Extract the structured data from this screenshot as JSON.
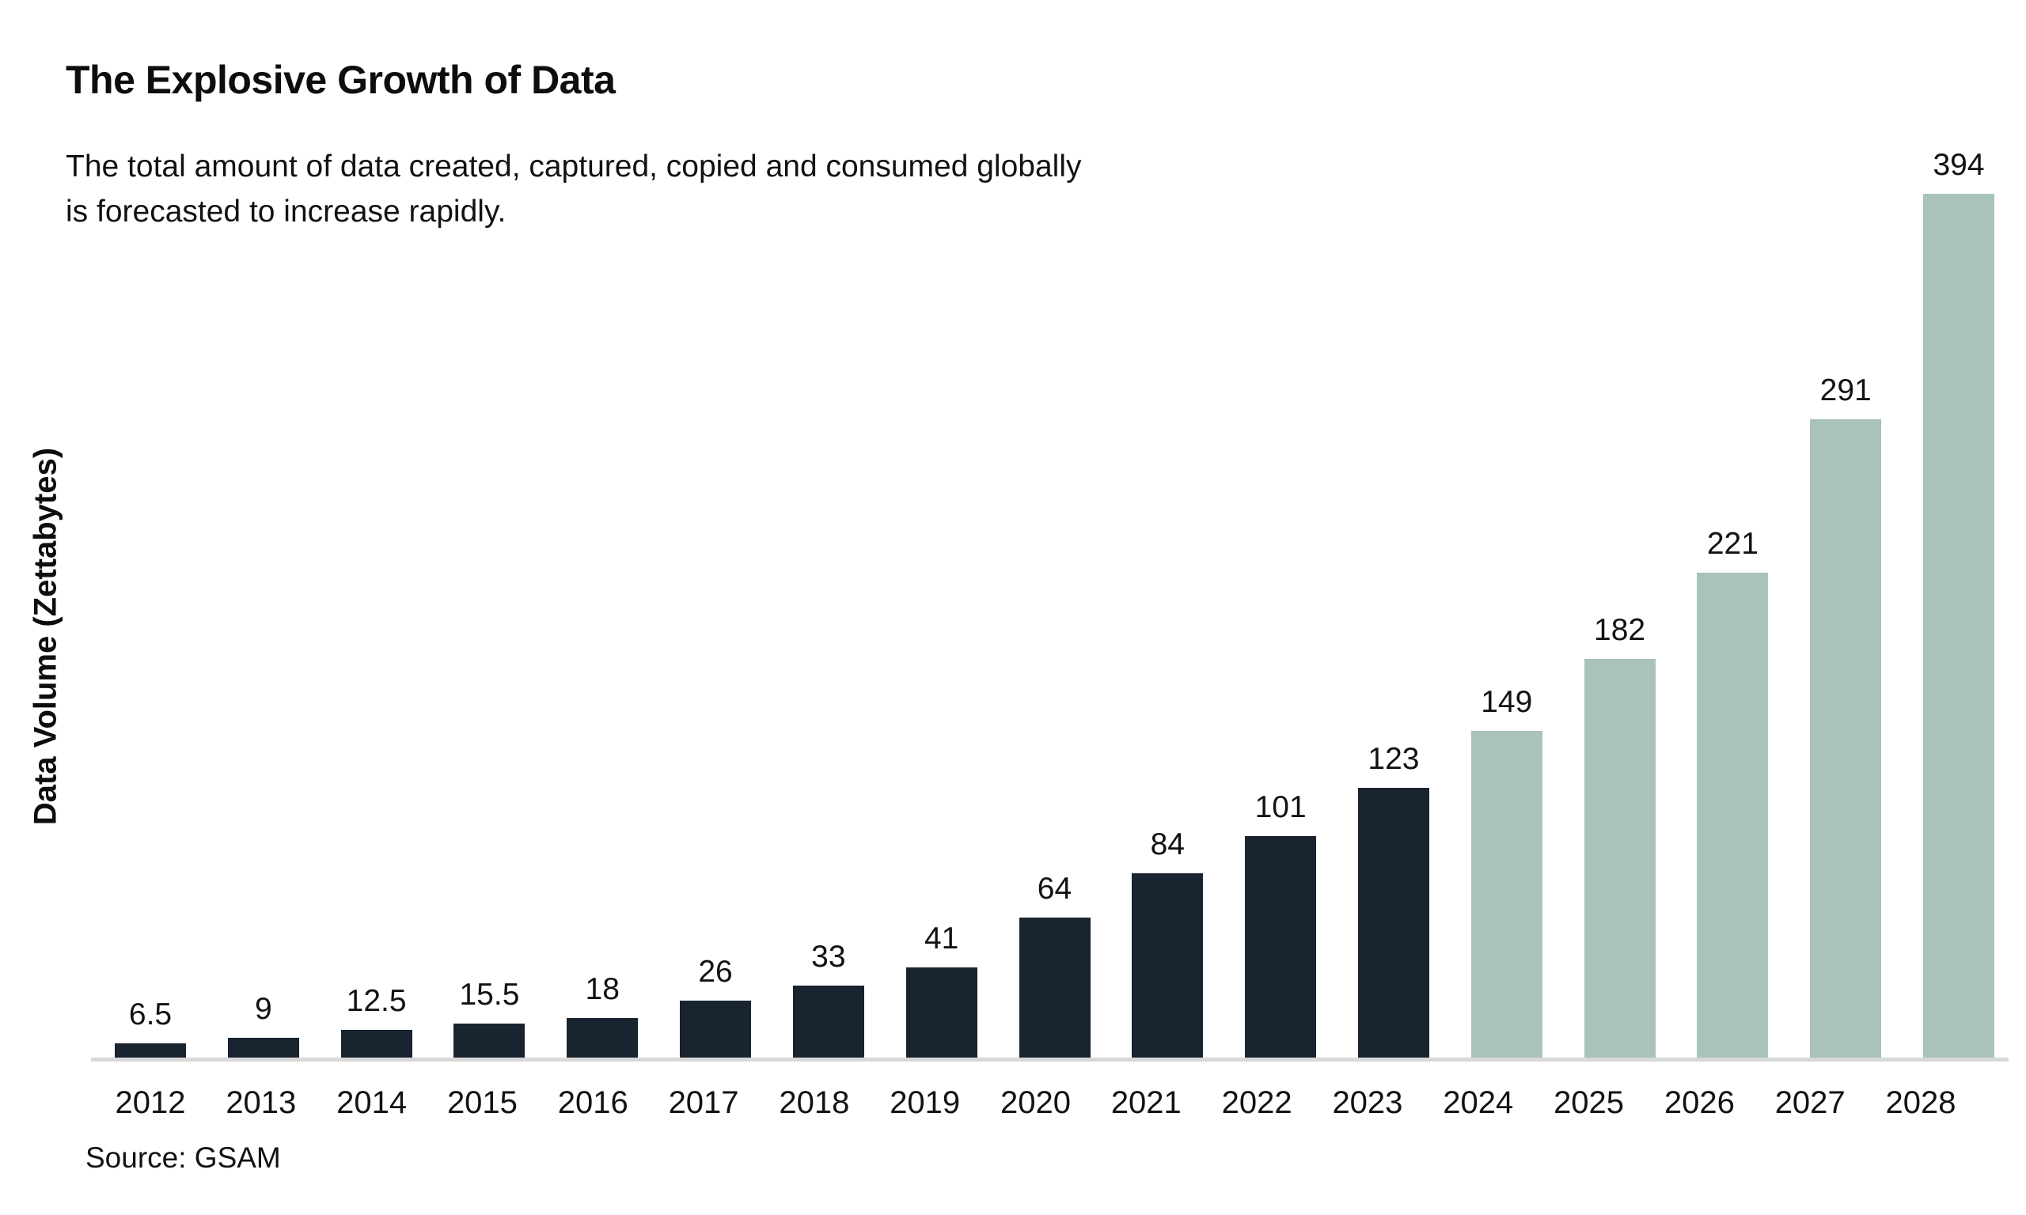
{
  "header": {
    "title": "The Explosive Growth of Data",
    "subtitle_lines": [
      "The total amount of data created, captured, copied and consumed globally",
      "is forecasted to increase rapidly."
    ]
  },
  "source_note": "Source: GSAM",
  "chart_data": {
    "type": "bar",
    "title": "The Explosive Growth of Data",
    "subtitle": "The total amount of data created, captured, copied and consumed globally is forecasted to increase rapidly.",
    "xlabel": "",
    "ylabel": "Data Volume (Zettabytes)",
    "ylim": [
      0,
      394
    ],
    "grid": false,
    "legend": "none",
    "value_labels": "above-bars",
    "categories": [
      "2012",
      "2013",
      "2014",
      "2015",
      "2016",
      "2017",
      "2018",
      "2019",
      "2020",
      "2021",
      "2022",
      "2023",
      "2024",
      "2025",
      "2026",
      "2027",
      "2028"
    ],
    "values": [
      6.5,
      9,
      12.5,
      15.5,
      18,
      26,
      33,
      41,
      64,
      84,
      101,
      123,
      149,
      182,
      221,
      291,
      394
    ],
    "bars": [
      {
        "year": "2012",
        "value": "6.5",
        "numeric": 6.5,
        "type": "actual"
      },
      {
        "year": "2013",
        "value": "9",
        "numeric": 9,
        "type": "actual"
      },
      {
        "year": "2014",
        "value": "12.5",
        "numeric": 12.5,
        "type": "actual"
      },
      {
        "year": "2015",
        "value": "15.5",
        "numeric": 15.5,
        "type": "actual"
      },
      {
        "year": "2016",
        "value": "18",
        "numeric": 18,
        "type": "actual"
      },
      {
        "year": "2017",
        "value": "26",
        "numeric": 26,
        "type": "actual"
      },
      {
        "year": "2018",
        "value": "33",
        "numeric": 33,
        "type": "actual"
      },
      {
        "year": "2019",
        "value": "41",
        "numeric": 41,
        "type": "actual"
      },
      {
        "year": "2020",
        "value": "64",
        "numeric": 64,
        "type": "actual"
      },
      {
        "year": "2021",
        "value": "84",
        "numeric": 84,
        "type": "actual"
      },
      {
        "year": "2022",
        "value": "101",
        "numeric": 101,
        "type": "actual"
      },
      {
        "year": "2023",
        "value": "123",
        "numeric": 123,
        "type": "actual"
      },
      {
        "year": "2024",
        "value": "149",
        "numeric": 149,
        "type": "forecast"
      },
      {
        "year": "2025",
        "value": "182",
        "numeric": 182,
        "type": "forecast"
      },
      {
        "year": "2026",
        "value": "221",
        "numeric": 221,
        "type": "forecast"
      },
      {
        "year": "2027",
        "value": "291",
        "numeric": 291,
        "type": "forecast"
      },
      {
        "year": "2028",
        "value": "394",
        "numeric": 394,
        "type": "forecast"
      }
    ],
    "colors": {
      "actual": "#18242F",
      "forecast": "#A9C2BA",
      "axis_line": "#D8D8D8",
      "text": "#121212"
    }
  }
}
